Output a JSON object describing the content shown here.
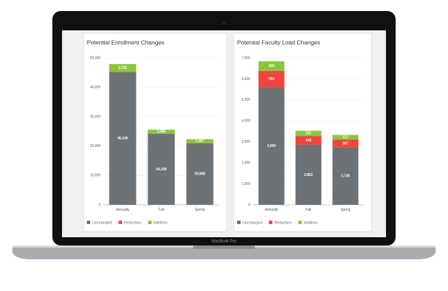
{
  "chart_data": [
    {
      "type": "bar",
      "stacked": true,
      "title": "Potential Enrollment Changes",
      "categories": [
        "Annually",
        "Fall",
        "Spring"
      ],
      "series": [
        {
          "name": "Unchanged",
          "color": "#6d7277",
          "values": [
            45196,
            24208,
            20988
          ],
          "value_labels": [
            "45,196",
            "24,208",
            "20,988"
          ]
        },
        {
          "name": "Reduction",
          "color": "#f0453e",
          "values": [
            null,
            null,
            null
          ],
          "value_labels": [
            null,
            null,
            null
          ]
        },
        {
          "name": "Addition",
          "color": "#8cc63e",
          "values": [
            2733,
            1386,
            1367
          ],
          "value_labels": [
            "2,733",
            "1,386",
            "1,367"
          ]
        }
      ],
      "ylim": [
        0,
        50000
      ],
      "yticks": [
        0,
        {
          "value": 10000,
          "label": "10,000"
        },
        {
          "value": 20000,
          "label": "20,000"
        },
        {
          "value": 30000,
          "label": "30,000"
        },
        {
          "value": 40000,
          "label": "40,000"
        },
        {
          "value": 50000,
          "label": "50,000"
        }
      ],
      "grid": true,
      "legend": "bottom-left"
    },
    {
      "type": "bar",
      "stacked": true,
      "title": "Potential Faculty Load Changes",
      "categories": [
        "Annually",
        "Fall",
        "Spring"
      ],
      "series": [
        {
          "name": "Unchanged",
          "color": "#6d7277",
          "values": [
            5599,
            2862,
            2738
          ],
          "value_labels": [
            "5,599",
            "2,862",
            "2,738"
          ]
        },
        {
          "name": "Reduction",
          "color": "#f0453e",
          "values": [
            785,
            418,
            367
          ]
        },
        {
          "name": "Addition",
          "color": "#8cc63e",
          "values": [
            458,
            251,
            227
          ]
        }
      ],
      "ylim": [
        0,
        7000
      ],
      "yticks": [
        0,
        {
          "value": 1000,
          "label": "1,000"
        },
        {
          "value": 2000,
          "label": "2,000"
        },
        {
          "value": 3000,
          "label": "3,000"
        },
        {
          "value": 4000,
          "label": "4,000"
        },
        {
          "value": 5000,
          "label": "5,000"
        },
        {
          "value": 6000,
          "label": "6,000"
        },
        {
          "value": 7000,
          "label": "7,000"
        }
      ],
      "grid": true,
      "legend": "bottom-left"
    }
  ],
  "device": {
    "label": "MacBook Pro"
  }
}
